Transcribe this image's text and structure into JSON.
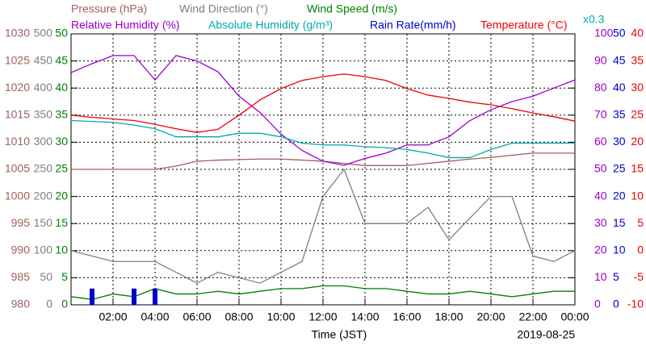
{
  "chart_data": {
    "type": "line",
    "x": [
      0,
      1,
      2,
      3,
      4,
      5,
      6,
      7,
      8,
      9,
      10,
      11,
      12,
      13,
      14,
      15,
      16,
      17,
      18,
      19,
      20,
      21,
      22,
      23,
      24
    ],
    "xlim": [
      0,
      24
    ],
    "xticks": [
      {
        "value": 2,
        "label": "02:00"
      },
      {
        "value": 4,
        "label": "04:00"
      },
      {
        "value": 6,
        "label": "06:00"
      },
      {
        "value": 8,
        "label": "08:00"
      },
      {
        "value": 10,
        "label": "10:00"
      },
      {
        "value": 12,
        "label": "12:00"
      },
      {
        "value": 14,
        "label": "14:00"
      },
      {
        "value": 16,
        "label": "16:00"
      },
      {
        "value": 18,
        "label": "18:00"
      },
      {
        "value": 20,
        "label": "20:00"
      },
      {
        "value": 22,
        "label": "22:00"
      },
      {
        "value": 24,
        "label": "00:00"
      }
    ],
    "xlabel": "Time (JST)",
    "date": "2019-08-25",
    "grid": true,
    "axes": [
      {
        "side": "left",
        "color": "#a0605c",
        "ylim": [
          980,
          1030
        ],
        "yticks": [
          980,
          985,
          990,
          995,
          1000,
          1005,
          1010,
          1015,
          1020,
          1025,
          1030
        ]
      },
      {
        "side": "left",
        "color": "#808080",
        "ylim": [
          0,
          500
        ],
        "yticks": [
          0,
          50,
          100,
          150,
          200,
          250,
          300,
          350,
          400,
          450,
          500
        ]
      },
      {
        "side": "left",
        "color": "#008000",
        "ylim": [
          0,
          50
        ],
        "yticks": [
          0,
          5,
          10,
          15,
          20,
          25,
          30,
          35,
          40,
          45,
          50
        ]
      },
      {
        "side": "right",
        "color": "#9900cc",
        "ylim": [
          0,
          100
        ],
        "yticks": [
          0,
          10,
          20,
          30,
          40,
          50,
          60,
          70,
          80,
          90,
          100
        ]
      },
      {
        "side": "none",
        "color": "#00aaaa",
        "ylim": [
          0,
          30
        ],
        "note": "x0.3"
      },
      {
        "side": "right",
        "color": "#0000cc",
        "ylim": [
          0,
          50
        ],
        "yticks": [
          0,
          5,
          10,
          15,
          20,
          25,
          30,
          35,
          40,
          45,
          50
        ]
      },
      {
        "side": "right",
        "color": "#ee0000",
        "ylim": [
          -10,
          40
        ],
        "yticks": [
          -10,
          -5,
          0,
          5,
          10,
          15,
          20,
          25,
          30,
          35,
          40
        ]
      }
    ],
    "series": [
      {
        "name": "Pressure (hPa)",
        "axis": 0,
        "color": "#a0605c",
        "style": "line",
        "values": [
          1005.0,
          1005.0,
          1005.0,
          1005.0,
          1005.0,
          1005.6,
          1006.5,
          1006.7,
          1006.8,
          1006.9,
          1006.9,
          1006.7,
          1006.5,
          1006.1,
          1005.7,
          1005.7,
          1005.7,
          1006.1,
          1006.5,
          1006.9,
          1007.2,
          1007.6,
          1008.0,
          1008.0,
          1008.0
        ]
      },
      {
        "name": "Wind Direction (°)",
        "axis": 1,
        "color": "#808080",
        "style": "line",
        "values": [
          100,
          90,
          80,
          80,
          80,
          60,
          40,
          60,
          50,
          40,
          60,
          80,
          200,
          250,
          150,
          150,
          150,
          180,
          120,
          160,
          200,
          200,
          90,
          80,
          100
        ]
      },
      {
        "name": "Wind Speed (m/s)",
        "axis": 2,
        "color": "#008000",
        "style": "line",
        "values": [
          1.5,
          1,
          2,
          1.5,
          3,
          2,
          2,
          2.5,
          2,
          2.5,
          3,
          3,
          3.5,
          3.5,
          3,
          3,
          2.5,
          2,
          2,
          2.5,
          2,
          1.5,
          2,
          2.5,
          2.5
        ]
      },
      {
        "name": "Relative Humidity (%)",
        "axis": 3,
        "color": "#9900cc",
        "style": "line",
        "values": [
          85.7,
          89,
          92,
          92,
          83,
          92,
          90,
          86,
          77,
          71,
          63,
          57,
          53,
          51.5,
          54,
          56,
          59,
          59,
          62,
          68,
          72,
          75,
          77,
          80,
          83
        ]
      },
      {
        "name": "Absolute Humidity (g/m³)",
        "axis": 4,
        "color": "#00aaaa",
        "style": "line",
        "values": [
          20.4,
          20.3,
          20.2,
          19.9,
          19.5,
          18.6,
          18.6,
          18.6,
          19.0,
          19.0,
          18.6,
          17.9,
          17.7,
          17.7,
          17.5,
          17.4,
          17.2,
          16.8,
          16.3,
          16.3,
          17.2,
          17.9,
          17.9,
          17.9,
          17.9
        ]
      },
      {
        "name": "Rain Rate(mm/h)",
        "axis": 5,
        "color": "#0000cc",
        "style": "bar",
        "values": [
          0,
          3,
          0,
          3,
          3,
          0,
          0,
          0,
          0,
          0,
          0,
          0,
          0,
          0,
          0,
          0,
          0,
          0,
          0,
          0,
          0,
          0,
          0,
          0,
          0
        ]
      },
      {
        "name": "Temperature (°C)",
        "axis": 6,
        "color": "#ee0000",
        "style": "line",
        "values": [
          25.0,
          24.6,
          24.3,
          24.0,
          23.3,
          22.5,
          21.8,
          22.4,
          25.0,
          27.8,
          29.9,
          31.4,
          32.1,
          32.6,
          32.1,
          31.4,
          29.9,
          28.7,
          28.1,
          27.4,
          26.9,
          26.2,
          25.4,
          24.7,
          23.9
        ]
      }
    ]
  }
}
